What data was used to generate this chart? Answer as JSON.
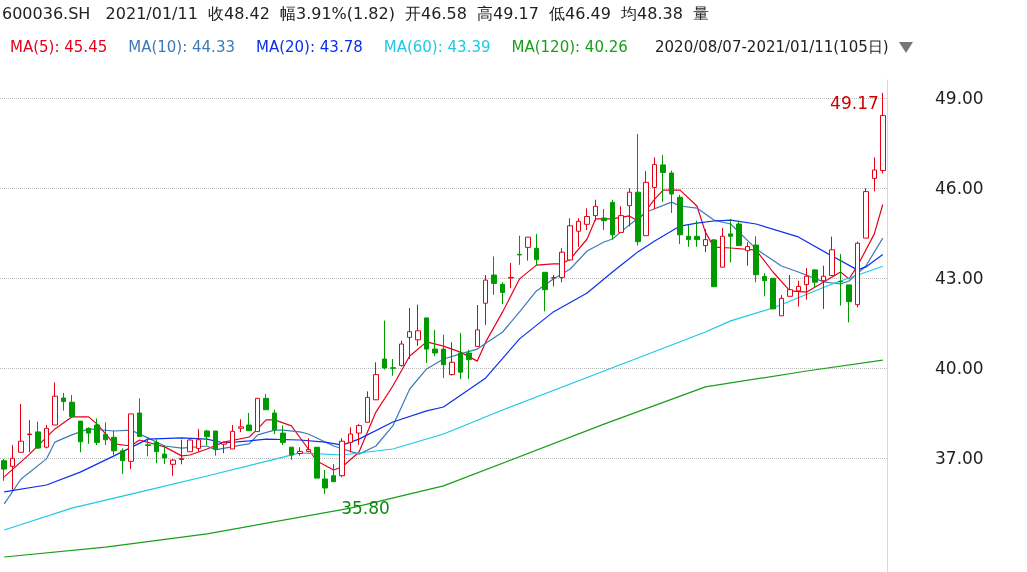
{
  "chart_data": {
    "type": "candlestick",
    "title": "600036.SH",
    "subtitle": "2021/01/11  收48.42  幅3.91%(1.82)  开46.58  高49.17  低46.49  均48.38  量",
    "annotations": [
      "2020/08/07-2021/01/11(105日)",
      "49.17",
      "35.80"
    ],
    "categories": [
      null,
      null,
      null,
      null,
      null,
      null,
      null,
      null,
      null,
      null,
      null,
      null,
      null,
      null,
      null,
      null,
      null,
      null,
      null,
      null,
      null,
      null,
      null,
      null,
      null,
      null,
      null,
      null,
      null,
      null,
      null,
      null,
      null,
      null,
      null,
      null,
      null,
      null,
      null,
      null,
      null,
      null,
      null,
      null,
      null,
      null,
      null,
      null,
      null,
      null,
      null,
      null,
      null,
      null,
      null,
      null,
      null,
      null,
      null,
      null,
      null,
      null,
      null,
      null,
      null,
      null,
      null,
      null,
      null,
      null,
      null,
      null,
      null,
      null,
      null,
      null,
      null,
      null,
      null,
      null,
      null,
      null,
      null,
      null,
      null,
      null,
      null,
      null,
      null,
      null,
      null,
      null,
      null,
      null,
      null,
      null,
      null,
      null,
      null,
      null,
      null,
      null,
      null,
      null,
      null
    ],
    "ohlc": [
      [
        36.91,
        36.97,
        36.24,
        36.63
      ],
      [
        36.72,
        37.43,
        35.94,
        36.99
      ],
      [
        37.19,
        38.8,
        37.19,
        37.56
      ],
      [
        37.78,
        38.27,
        37.19,
        37.8
      ],
      [
        37.87,
        38.21,
        37.3,
        37.33
      ],
      [
        37.36,
        38.1,
        37.32,
        37.99
      ],
      [
        38.1,
        39.52,
        38.1,
        39.06
      ],
      [
        39.0,
        39.17,
        38.58,
        38.88
      ],
      [
        38.86,
        39.1,
        38.38,
        38.38
      ],
      [
        38.23,
        38.23,
        37.19,
        37.54
      ],
      [
        37.99,
        38.02,
        37.47,
        37.83
      ],
      [
        38.1,
        38.32,
        37.43,
        37.52
      ],
      [
        37.79,
        38.19,
        37.43,
        37.61
      ],
      [
        37.69,
        37.91,
        37.1,
        37.24
      ],
      [
        37.24,
        37.32,
        36.47,
        36.91
      ],
      [
        36.89,
        38.47,
        36.63,
        38.47
      ],
      [
        38.5,
        38.99,
        37.72,
        37.72
      ],
      [
        37.44,
        37.69,
        37.06,
        37.42
      ],
      [
        37.52,
        37.63,
        36.83,
        37.21
      ],
      [
        37.13,
        37.43,
        36.8,
        37.0
      ],
      [
        36.79,
        36.97,
        36.41,
        36.93
      ],
      [
        36.95,
        37.61,
        36.79,
        36.99
      ],
      [
        37.21,
        37.63,
        37.21,
        37.6
      ],
      [
        37.32,
        37.97,
        37.21,
        37.61
      ],
      [
        37.9,
        37.94,
        37.43,
        37.71
      ],
      [
        37.9,
        37.9,
        37.08,
        37.3
      ],
      [
        37.46,
        37.55,
        37.16,
        37.52
      ],
      [
        37.3,
        38.1,
        37.3,
        37.89
      ],
      [
        37.99,
        38.29,
        37.86,
        38.04
      ],
      [
        38.1,
        38.5,
        37.91,
        37.91
      ],
      [
        37.88,
        38.99,
        37.88,
        38.99
      ],
      [
        38.99,
        39.13,
        38.61,
        38.61
      ],
      [
        38.5,
        38.61,
        37.8,
        37.94
      ],
      [
        37.83,
        38.08,
        37.43,
        37.52
      ],
      [
        37.36,
        37.36,
        36.94,
        37.1
      ],
      [
        37.15,
        37.36,
        37.08,
        37.22
      ],
      [
        37.22,
        37.66,
        37.19,
        37.28
      ],
      [
        37.36,
        37.36,
        36.33,
        36.33
      ],
      [
        36.3,
        36.6,
        35.8,
        36.0
      ],
      [
        36.41,
        36.8,
        36.21,
        36.21
      ],
      [
        36.41,
        37.66,
        36.36,
        37.56
      ],
      [
        37.52,
        38.02,
        37.19,
        37.8
      ],
      [
        37.83,
        38.13,
        37.44,
        38.08
      ],
      [
        38.19,
        39.22,
        38.19,
        39.02
      ],
      [
        38.94,
        40.19,
        38.94,
        39.78
      ],
      [
        40.3,
        41.58,
        39.95,
        40.0
      ],
      [
        40.01,
        40.3,
        39.74,
        39.99
      ],
      [
        40.08,
        40.91,
        40.05,
        40.8
      ],
      [
        41.02,
        42.0,
        40.3,
        41.21
      ],
      [
        40.94,
        42.11,
        40.74,
        41.24
      ],
      [
        41.67,
        41.67,
        40.17,
        40.63
      ],
      [
        40.63,
        41.27,
        40.39,
        40.5
      ],
      [
        40.63,
        41.11,
        39.67,
        40.11
      ],
      [
        39.78,
        40.86,
        39.75,
        40.19
      ],
      [
        40.5,
        41.17,
        39.63,
        39.86
      ],
      [
        40.5,
        40.61,
        39.63,
        40.28
      ],
      [
        40.72,
        42.1,
        40.72,
        41.27
      ],
      [
        42.16,
        43.1,
        41.44,
        42.93
      ],
      [
        43.1,
        43.72,
        42.44,
        42.82
      ],
      [
        42.79,
        42.86,
        42.13,
        42.52
      ],
      [
        43.0,
        43.5,
        42.66,
        43.02
      ],
      [
        43.79,
        44.41,
        43.44,
        43.77
      ],
      [
        44.02,
        44.36,
        43.58,
        44.36
      ],
      [
        43.99,
        44.47,
        43.43,
        43.61
      ],
      [
        43.19,
        43.19,
        41.89,
        42.61
      ],
      [
        43.0,
        43.1,
        42.72,
        43.01
      ],
      [
        43.02,
        43.99,
        42.86,
        43.86
      ],
      [
        43.6,
        44.99,
        43.58,
        44.74
      ],
      [
        44.56,
        44.99,
        44.04,
        44.89
      ],
      [
        44.79,
        45.32,
        44.6,
        45.05
      ],
      [
        45.08,
        45.61,
        44.9,
        45.39
      ],
      [
        45.0,
        45.3,
        44.6,
        44.91
      ],
      [
        45.52,
        45.61,
        44.28,
        44.44
      ],
      [
        44.52,
        45.39,
        44.52,
        45.08
      ],
      [
        45.41,
        45.99,
        44.72,
        45.86
      ],
      [
        45.86,
        47.8,
        44.08,
        44.21
      ],
      [
        44.41,
        46.56,
        44.41,
        46.19
      ],
      [
        46.02,
        47.02,
        45.3,
        46.78
      ],
      [
        46.77,
        47.1,
        45.54,
        46.52
      ],
      [
        46.5,
        46.58,
        45.17,
        45.8
      ],
      [
        45.69,
        45.77,
        44.13,
        44.44
      ],
      [
        44.39,
        44.77,
        44.04,
        44.28
      ],
      [
        44.39,
        44.91,
        44.04,
        44.28
      ],
      [
        44.08,
        44.63,
        43.86,
        44.28
      ],
      [
        44.27,
        44.3,
        42.71,
        42.71
      ],
      [
        43.36,
        44.67,
        43.36,
        44.39
      ],
      [
        44.47,
        44.97,
        43.52,
        44.39
      ],
      [
        44.8,
        44.91,
        44.08,
        44.08
      ],
      [
        43.91,
        44.19,
        43.41,
        44.05
      ],
      [
        44.1,
        44.39,
        42.86,
        43.11
      ],
      [
        43.05,
        43.16,
        42.39,
        42.91
      ],
      [
        42.99,
        42.99,
        41.97,
        41.97
      ],
      [
        41.74,
        42.43,
        41.74,
        42.32
      ],
      [
        42.39,
        43.1,
        42.39,
        42.61
      ],
      [
        42.57,
        42.91,
        42.05,
        42.72
      ],
      [
        42.78,
        43.33,
        42.28,
        43.06
      ],
      [
        43.27,
        43.3,
        42.69,
        42.86
      ],
      [
        42.91,
        43.41,
        41.97,
        43.06
      ],
      [
        43.08,
        44.38,
        43.08,
        43.94
      ],
      [
        42.89,
        43.8,
        42.08,
        42.87
      ],
      [
        42.77,
        42.77,
        41.52,
        42.21
      ],
      [
        42.11,
        44.21,
        42.02,
        44.16
      ],
      [
        44.33,
        45.99,
        44.33,
        45.88
      ],
      [
        46.32,
        47.02,
        45.89,
        46.6
      ],
      [
        46.58,
        49.17,
        46.49,
        48.42
      ]
    ],
    "ylim": [
      33.2,
      49.6
    ],
    "yticks": [
      {
        "value": 37,
        "label": "37.00"
      },
      {
        "value": 40,
        "label": "40.00"
      },
      {
        "value": 43,
        "label": "43.00"
      },
      {
        "value": 46,
        "label": "46.00"
      },
      {
        "value": 49,
        "label": "49.00"
      }
    ],
    "series": [
      {
        "name": "MA(5): 45.45",
        "type": "line",
        "color": "#e8001c",
        "values": [
          36.37,
          null,
          null,
          37.13,
          null,
          null,
          37.97,
          null,
          38.37,
          null,
          38.37,
          38.13,
          null,
          37.47,
          null,
          37.4,
          37.6,
          null,
          null,
          37.37,
          null,
          37.07,
          37.1,
          null,
          37.3,
          null,
          37.53,
          null,
          null,
          37.7,
          37.97,
          38.27,
          38.27,
          null,
          38.07,
          null,
          37.3,
          36.9,
          null,
          36.6,
          36.7,
          null,
          37.2,
          null,
          38.53,
          null,
          39.4,
          null,
          40.4,
          null,
          40.87,
          null,
          40.73,
          null,
          40.53,
          null,
          40.23,
          40.87,
          null,
          41.87,
          null,
          42.97,
          null,
          43.43,
          null,
          43.47,
          43.47,
          43.63,
          null,
          44.3,
          44.97,
          null,
          44.97,
          null,
          45.07,
          44.9,
          null,
          45.63,
          45.93,
          null,
          45.93,
          null,
          45.4,
          44.53,
          44.03,
          null,
          44.0,
          null,
          null,
          43.93,
          null,
          43.2,
          null,
          42.57,
          null,
          42.53,
          null,
          42.87,
          null,
          43.2,
          42.97,
          43.4,
          null,
          44.47,
          45.45
        ]
      },
      {
        "name": "MA(10): 44.33",
        "type": "line",
        "color": "#3d7ab8",
        "values": [
          35.47,
          null,
          36.3,
          null,
          null,
          36.97,
          37.53,
          null,
          37.77,
          null,
          37.97,
          null,
          null,
          37.9,
          null,
          37.93,
          null,
          37.67,
          null,
          37.4,
          null,
          37.33,
          null,
          null,
          37.4,
          37.27,
          null,
          null,
          37.43,
          37.47,
          37.77,
          null,
          37.93,
          37.93,
          null,
          37.87,
          37.8,
          null,
          null,
          37.4,
          null,
          null,
          37.13,
          null,
          37.4,
          null,
          38.07,
          null,
          39.3,
          null,
          39.97,
          null,
          40.3,
          null,
          40.47,
          null,
          40.63,
          null,
          null,
          41.2,
          null,
          41.87,
          null,
          42.57,
          null,
          42.97,
          null,
          43.3,
          null,
          43.9,
          null,
          44.2,
          44.3,
          null,
          44.77,
          null,
          45.2,
          null,
          null,
          45.53,
          45.4,
          null,
          45.33,
          null,
          44.93,
          null,
          44.8,
          null,
          null,
          43.97,
          null,
          null,
          43.4,
          null,
          43.2,
          null,
          null,
          42.87,
          null,
          42.8,
          42.9,
          null,
          43.4,
          null,
          44.33
        ]
      },
      {
        "name": "MA(20): 43.78",
        "type": "line",
        "color": "#0a2ff0",
        "values": [
          35.87,
          null,
          null,
          null,
          null,
          36.1,
          null,
          null,
          null,
          36.53,
          null,
          null,
          null,
          37.07,
          null,
          null,
          null,
          37.63,
          null,
          null,
          null,
          37.67,
          null,
          null,
          37.63,
          null,
          37.5,
          null,
          null,
          37.57,
          null,
          37.63,
          null,
          null,
          null,
          37.6,
          null,
          null,
          37.53,
          null,
          37.43,
          null,
          37.63,
          null,
          null,
          null,
          38.2,
          null,
          null,
          null,
          38.57,
          null,
          38.7,
          null,
          null,
          null,
          null,
          39.67,
          null,
          null,
          null,
          40.97,
          null,
          null,
          null,
          41.87,
          null,
          null,
          null,
          42.5,
          null,
          null,
          43.2,
          null,
          null,
          43.87,
          null,
          44.23,
          null,
          null,
          44.73,
          null,
          44.83,
          null,
          44.9,
          null,
          44.93,
          null,
          null,
          44.8,
          null,
          null,
          null,
          null,
          44.37,
          null,
          null,
          null,
          43.73,
          null,
          null,
          43.27,
          43.37,
          null,
          43.78
        ]
      },
      {
        "name": "MA(60): 43.39",
        "type": "line",
        "color": "#1ec8e6",
        "values": [
          34.6,
          null,
          null,
          null,
          null,
          null,
          null,
          null,
          35.33,
          null,
          null,
          null,
          null,
          null,
          null,
          null,
          null,
          35.93,
          null,
          null,
          null,
          null,
          null,
          null,
          36.4,
          null,
          null,
          null,
          null,
          null,
          null,
          null,
          null,
          null,
          null,
          37.17,
          null,
          null,
          null,
          null,
          37.1,
          null,
          null,
          null,
          null,
          null,
          37.3,
          null,
          null,
          null,
          null,
          null,
          37.8,
          null,
          null,
          null,
          null,
          null,
          null,
          38.6,
          null,
          null,
          null,
          null,
          null,
          null,
          null,
          null,
          null,
          null,
          null,
          39.9,
          null,
          null,
          null,
          null,
          null,
          null,
          null,
          null,
          null,
          null,
          null,
          41.2,
          null,
          null,
          41.57,
          null,
          null,
          null,
          null,
          42.0,
          null,
          null,
          null,
          null,
          null,
          null,
          42.8,
          null,
          null,
          null,
          null,
          null,
          43.39
        ]
      },
      {
        "name": "MA(120): 40.26",
        "type": "line",
        "color": "#1a9e1a",
        "values": [
          33.7,
          null,
          null,
          null,
          null,
          null,
          null,
          null,
          null,
          null,
          null,
          null,
          34.03,
          null,
          null,
          null,
          null,
          null,
          null,
          null,
          null,
          null,
          null,
          null,
          34.47,
          null,
          null,
          null,
          null,
          null,
          null,
          null,
          null,
          null,
          null,
          null,
          null,
          null,
          null,
          null,
          null,
          35.33,
          null,
          null,
          null,
          null,
          null,
          null,
          null,
          null,
          null,
          null,
          36.07,
          null,
          null,
          null,
          null,
          null,
          null,
          null,
          null,
          null,
          null,
          null,
          null,
          null,
          null,
          null,
          null,
          null,
          null,
          38.13,
          null,
          null,
          null,
          null,
          null,
          null,
          null,
          null,
          null,
          null,
          null,
          39.37,
          null,
          null,
          null,
          null,
          null,
          null,
          null,
          null,
          null,
          null,
          null,
          39.9,
          null,
          null,
          null,
          null,
          null,
          null,
          null,
          null,
          40.26
        ]
      }
    ],
    "grid": "y",
    "legend": "top left",
    "tick_labels": "y",
    "marker": "none"
  }
}
